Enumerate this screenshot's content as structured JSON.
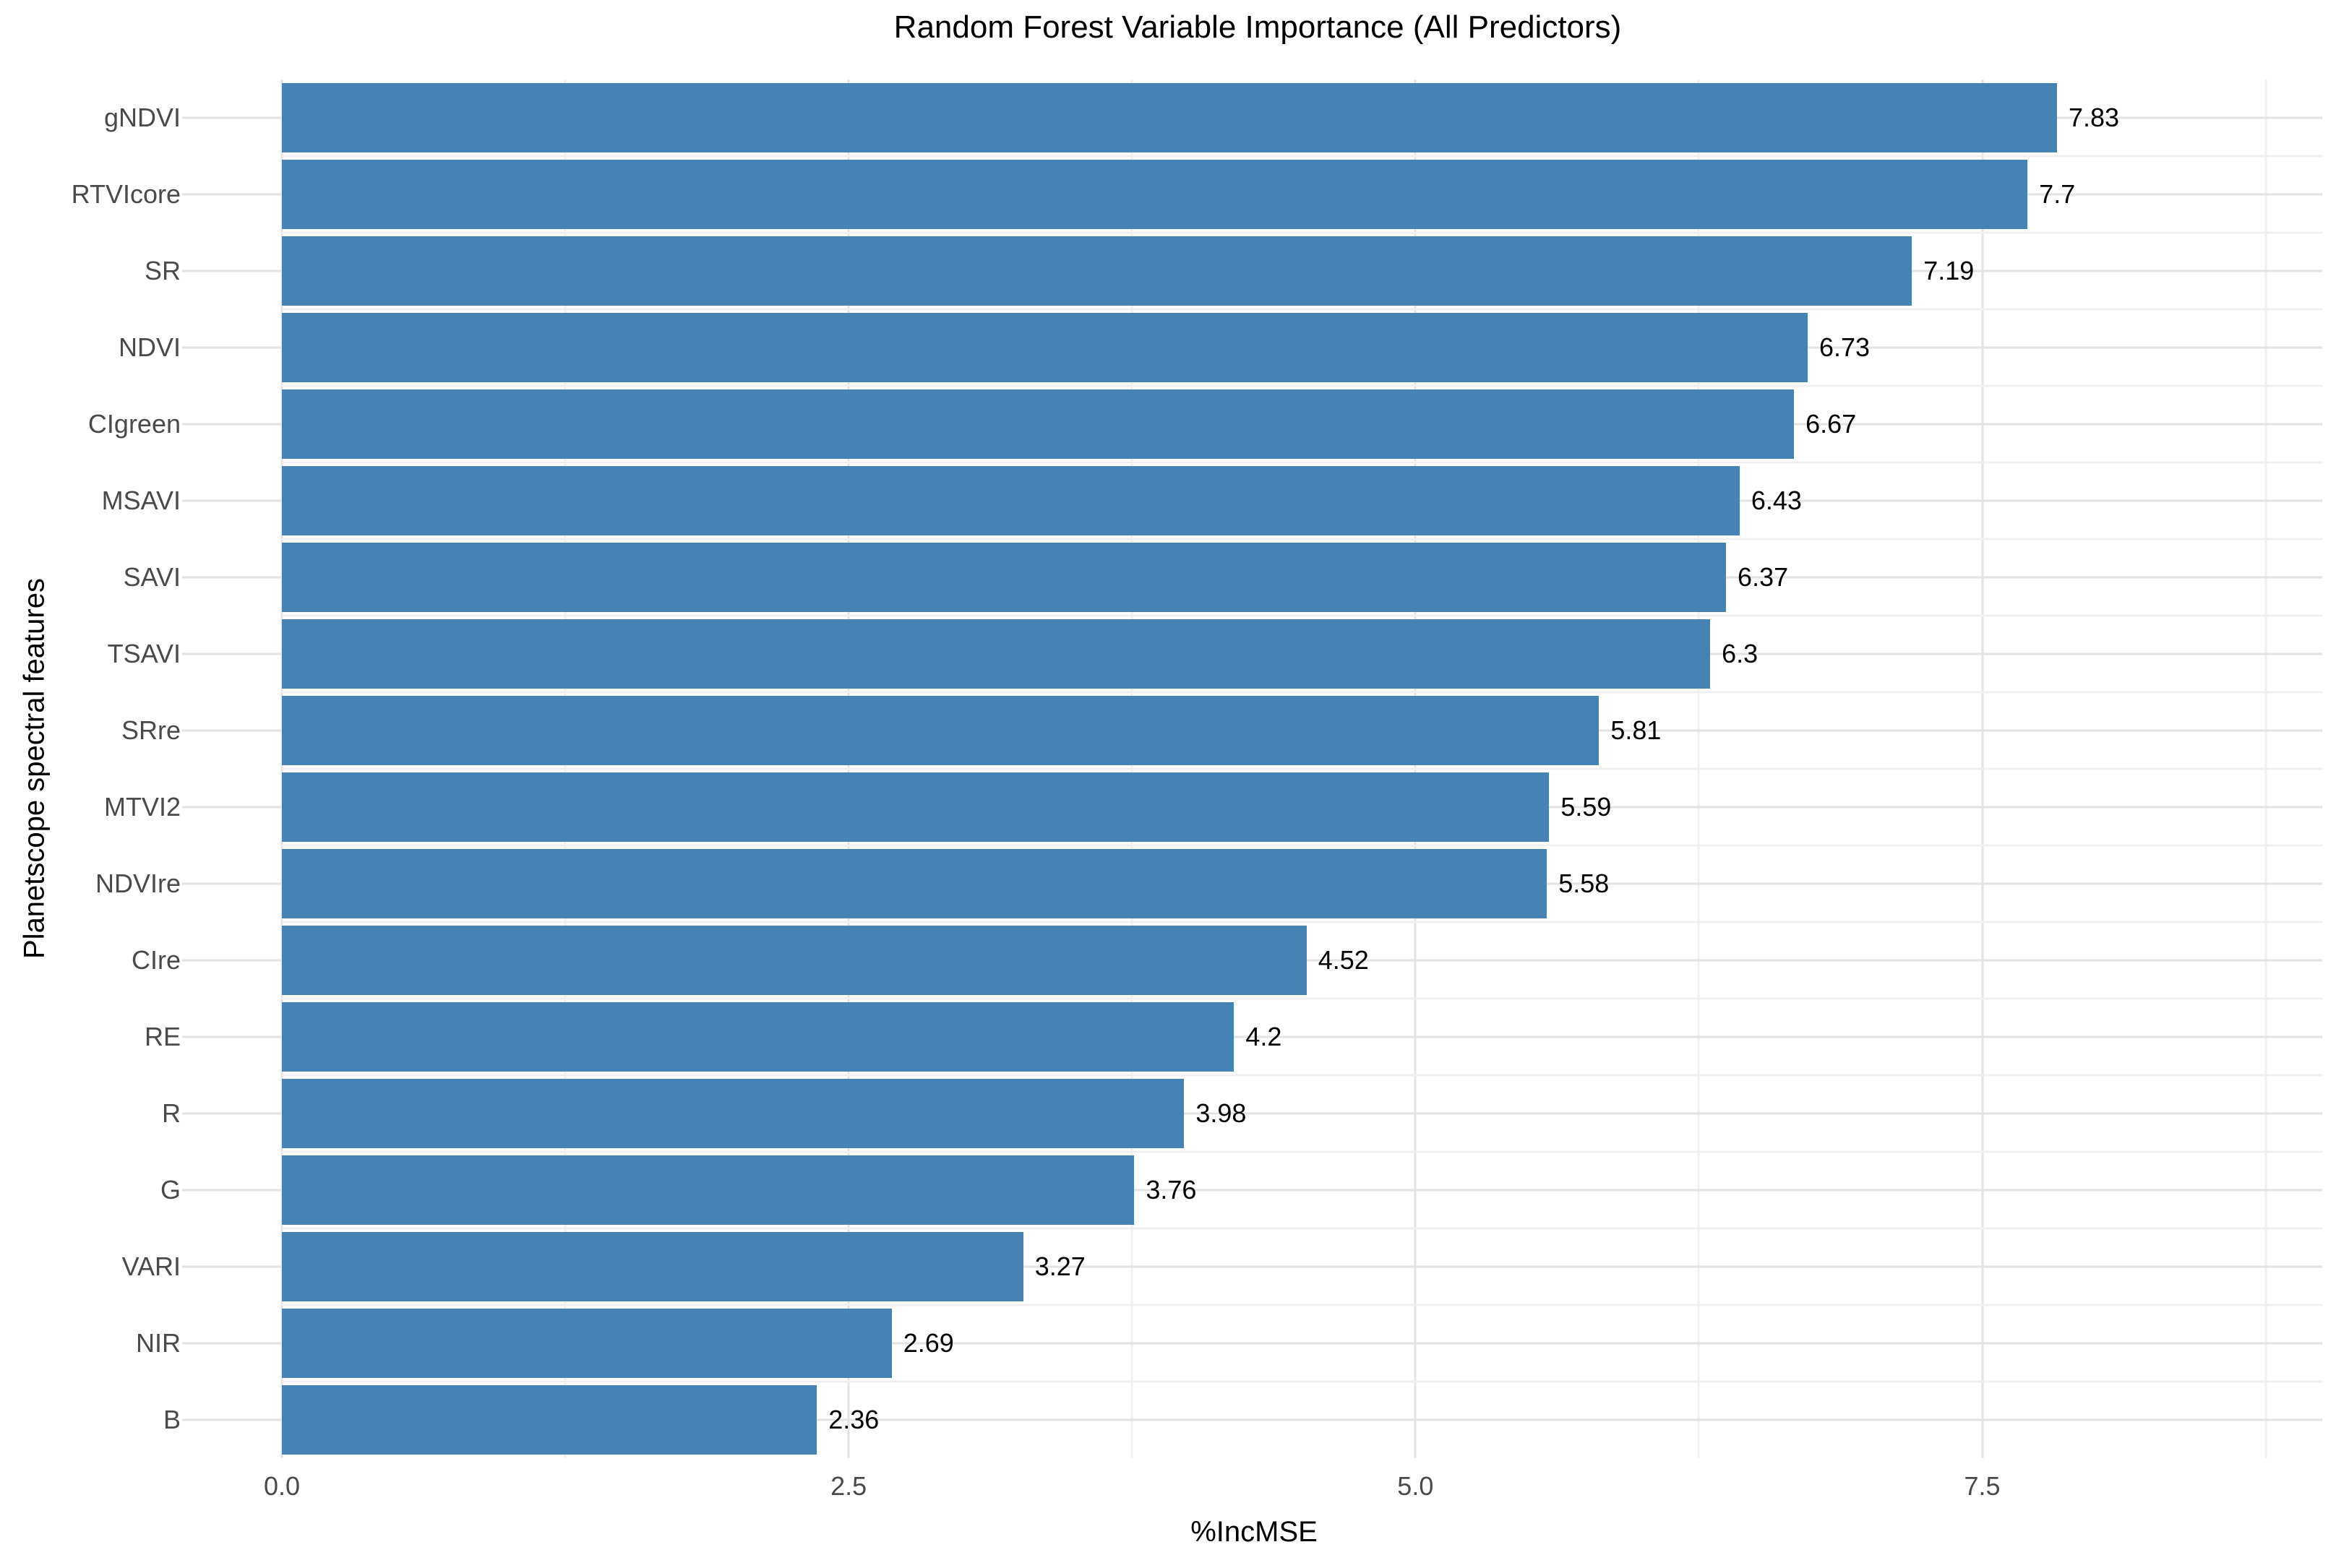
{
  "page": {
    "background": "#ffffff"
  },
  "chart_data": {
    "type": "bar",
    "orientation": "horizontal",
    "title": "Random Forest Variable Importance (All Predictors)",
    "xlabel": "%IncMSE",
    "ylabel": "Planetscope spectral features",
    "categories": [
      "gNDVI",
      "RTVIcore",
      "SR",
      "NDVI",
      "CIgreen",
      "MSAVI",
      "SAVI",
      "TSAVI",
      "SRre",
      "MTVI2",
      "NDVIre",
      "CIre",
      "RE",
      "R",
      "G",
      "VARI",
      "NIR",
      "B"
    ],
    "values": [
      7.83,
      7.7,
      7.19,
      6.73,
      6.67,
      6.43,
      6.37,
      6.3,
      5.81,
      5.59,
      5.58,
      4.52,
      4.2,
      3.98,
      3.76,
      3.27,
      2.69,
      2.36
    ],
    "value_labels": [
      "7.83",
      "7.7",
      "7.19",
      "6.73",
      "6.67",
      "6.43",
      "6.37",
      "6.3",
      "5.81",
      "5.59",
      "5.58",
      "4.52",
      "4.2",
      "3.98",
      "3.76",
      "3.27",
      "2.69",
      "2.36"
    ],
    "xlim": [
      0,
      9
    ],
    "x_major_ticks": {
      "values": [
        0,
        2.5,
        5,
        7.5
      ],
      "labels": [
        "0.0",
        "2.5",
        "5.0",
        "7.5"
      ]
    },
    "x_minor_ticks": [
      1.25,
      3.75,
      6.25,
      8.75
    ],
    "bar_color": "#4682B4",
    "grid": {
      "shown": true,
      "major_color": "#e3e3e3",
      "minor_color": "#f0f0f0",
      "background": "#ffffff"
    },
    "text_colors": {
      "title": "#000000",
      "axis_title": "#000000",
      "tick_label": "#4a4a4a",
      "value_label": "#000000"
    },
    "legend": "none",
    "bar_width_fraction": 0.9
  }
}
